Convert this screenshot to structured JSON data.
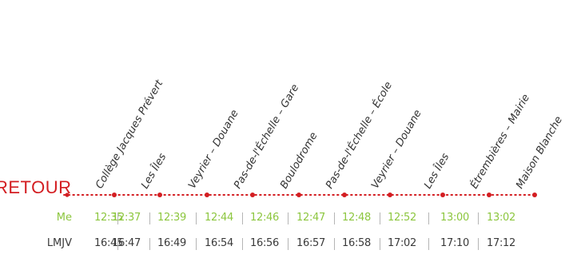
{
  "direction_label": "RETOUR",
  "accent_color": "#d31d21",
  "me_color": "#8cc63e",
  "stops": [
    "Collège Jacques Prévert",
    "Les Îles",
    "Veyrier – Douane",
    "Pas-de-l'Échelle – Gare",
    "Boulodrome",
    "Pas-de-l'Échelle – École",
    "Veyrier – Douane",
    "Les Îles",
    "Étrembières – Mairie",
    "Maison Blanche"
  ],
  "rows": [
    {
      "label": "Me",
      "times": [
        "12:35",
        "12:37",
        "12:39",
        "12:44",
        "12:46",
        "12:47",
        "12:48",
        "12:52",
        "13:00",
        "13:02"
      ]
    },
    {
      "label": "LMJV",
      "times": [
        "16:45",
        "16:47",
        "16:49",
        "16:54",
        "16:56",
        "16:57",
        "16:58",
        "17:02",
        "17:10",
        "17:12"
      ]
    }
  ]
}
